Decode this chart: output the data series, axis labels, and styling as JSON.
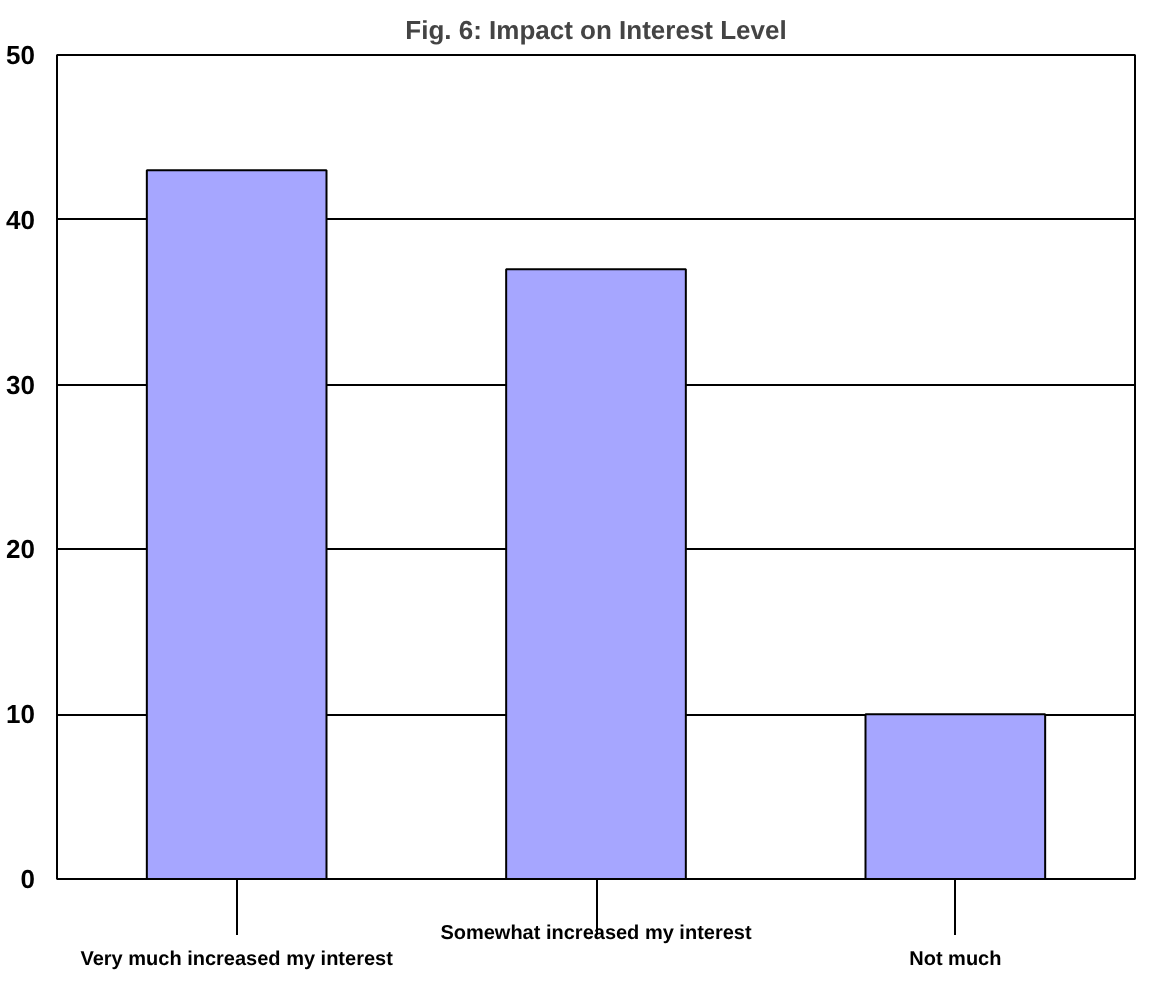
{
  "chart_data": {
    "type": "bar",
    "title": "Fig. 6: Impact on Interest Level",
    "categories": [
      "Very much increased my interest",
      "Somewhat increased my interest",
      "Not much"
    ],
    "values": [
      43,
      37,
      10
    ],
    "color": "#a6a6ff",
    "ylim": [
      0,
      50
    ],
    "yticks": [
      0,
      10,
      20,
      30,
      40,
      50
    ],
    "grid": "y"
  }
}
